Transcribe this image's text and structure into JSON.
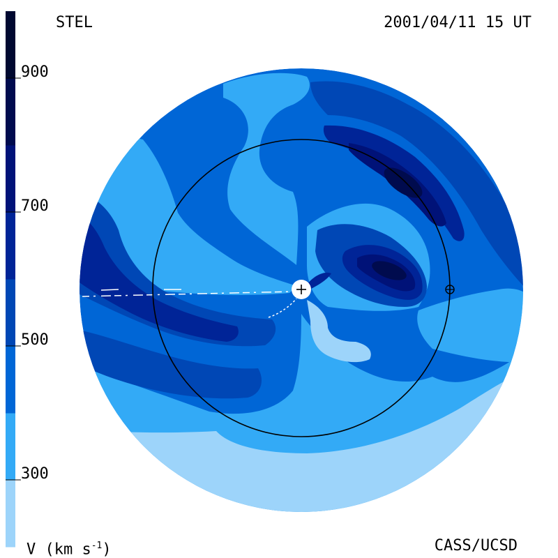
{
  "header": {
    "title": "STEL",
    "timestamp": "2001/04/11 15 UT"
  },
  "colorbar": {
    "unit_main": "V (km s",
    "unit_sup": "-1",
    "unit_close": ")",
    "ticks": [
      {
        "value": 900,
        "label": "900"
      },
      {
        "value": 700,
        "label": "700"
      },
      {
        "value": 500,
        "label": "500"
      },
      {
        "value": 300,
        "label": "300"
      }
    ],
    "bands": [
      {
        "min": 200,
        "max": 300,
        "color": "#9dd4fa"
      },
      {
        "min": 300,
        "max": 400,
        "color": "#33aaf6"
      },
      {
        "min": 400,
        "max": 500,
        "color": "#0066d6"
      },
      {
        "min": 500,
        "max": 600,
        "color": "#0047b5"
      },
      {
        "min": 600,
        "max": 700,
        "color": "#002497"
      },
      {
        "min": 700,
        "max": 800,
        "color": "#001278"
      },
      {
        "min": 800,
        "max": 900,
        "color": "#000b4e"
      },
      {
        "min": 900,
        "max": 1000,
        "color": "#000830"
      }
    ]
  },
  "footer": {
    "credit": "CASS/UCSD"
  },
  "colors": {
    "v200_300": "#9dd4fa",
    "v300_400": "#33aaf6",
    "v400_500": "#0066d6",
    "v500_600": "#0047b5",
    "v600_700": "#002497",
    "v700_800": "#001278",
    "v800_900": "#000b4e",
    "orbit_line": "#000000",
    "sun_marker": "#ffffff"
  },
  "markers": {
    "sun_symbol": "+",
    "earth_symbol": "⊕"
  }
}
